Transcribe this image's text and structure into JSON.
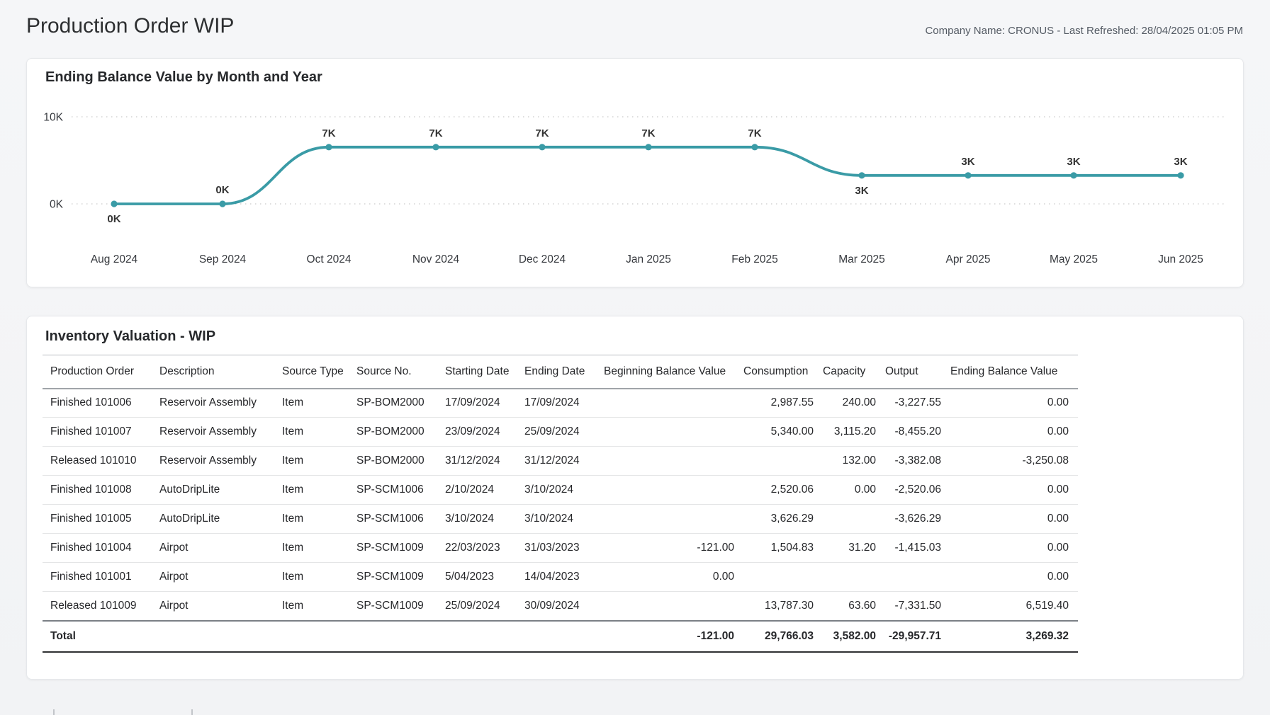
{
  "page": {
    "title": "Production Order WIP",
    "company_info": "Company Name: CRONUS - Last Refreshed: 28/04/2025 01:05 PM"
  },
  "chart_data": {
    "type": "line",
    "title": "Ending Balance Value by Month and Year",
    "x": [
      "Aug 2024",
      "Sep 2024",
      "Oct 2024",
      "Nov 2024",
      "Dec 2024",
      "Jan 2025",
      "Feb 2025",
      "Mar 2025",
      "Apr 2025",
      "May 2025",
      "Jun 2025"
    ],
    "series": [
      {
        "name": "Ending Balance Value",
        "values": [
          0,
          0,
          6519,
          6519,
          6519,
          6519,
          6519,
          3269,
          3269,
          3269,
          3269
        ],
        "data_labels": [
          "0K",
          "0K",
          "7K",
          "7K",
          "7K",
          "7K",
          "7K",
          "3K",
          "3K",
          "3K",
          "3K"
        ],
        "data_label_positions": [
          "below",
          "above",
          "above",
          "above",
          "above",
          "above",
          "above",
          "below",
          "above",
          "above",
          "above"
        ]
      }
    ],
    "y_ticks": [
      {
        "label": "10K",
        "value": 10000
      },
      {
        "label": "0K",
        "value": 0
      }
    ],
    "ylim": [
      0,
      10000
    ],
    "line_color": "#3A9BA6",
    "grid": "dotted horizontal",
    "legend": "none"
  },
  "table": {
    "title": "Inventory Valuation - WIP",
    "columns": [
      "Production Order",
      "Description",
      "Source Type",
      "Source No.",
      "Starting Date",
      "Ending Date",
      "Beginning Balance Value",
      "Consumption",
      "Capacity",
      "Output",
      "Ending Balance Value"
    ],
    "rows": [
      [
        "Finished 101006",
        "Reservoir Assembly",
        "Item",
        "SP-BOM2000",
        "17/09/2024",
        "17/09/2024",
        "",
        "2,987.55",
        "240.00",
        "-3,227.55",
        "0.00"
      ],
      [
        "Finished 101007",
        "Reservoir Assembly",
        "Item",
        "SP-BOM2000",
        "23/09/2024",
        "25/09/2024",
        "",
        "5,340.00",
        "3,115.20",
        "-8,455.20",
        "0.00"
      ],
      [
        "Released 101010",
        "Reservoir Assembly",
        "Item",
        "SP-BOM2000",
        "31/12/2024",
        "31/12/2024",
        "",
        "",
        "132.00",
        "-3,382.08",
        "-3,250.08"
      ],
      [
        "Finished 101008",
        "AutoDripLite",
        "Item",
        "SP-SCM1006",
        "2/10/2024",
        "3/10/2024",
        "",
        "2,520.06",
        "0.00",
        "-2,520.06",
        "0.00"
      ],
      [
        "Finished 101005",
        "AutoDripLite",
        "Item",
        "SP-SCM1006",
        "3/10/2024",
        "3/10/2024",
        "",
        "3,626.29",
        "",
        "-3,626.29",
        "0.00"
      ],
      [
        "Finished 101004",
        "Airpot",
        "Item",
        "SP-SCM1009",
        "22/03/2023",
        "31/03/2023",
        "-121.00",
        "1,504.83",
        "31.20",
        "-1,415.03",
        "0.00"
      ],
      [
        "Finished 101001",
        "Airpot",
        "Item",
        "SP-SCM1009",
        "5/04/2023",
        "14/04/2023",
        "0.00",
        "",
        "",
        "",
        "0.00"
      ],
      [
        "Released 101009",
        "Airpot",
        "Item",
        "SP-SCM1009",
        "25/09/2024",
        "30/09/2024",
        "",
        "13,787.30",
        "63.60",
        "-7,331.50",
        "6,519.40"
      ]
    ],
    "total_row": [
      "Total",
      "",
      "",
      "",
      "",
      "",
      "-121.00",
      "29,766.03",
      "3,582.00",
      "-29,957.71",
      "3,269.32"
    ]
  }
}
